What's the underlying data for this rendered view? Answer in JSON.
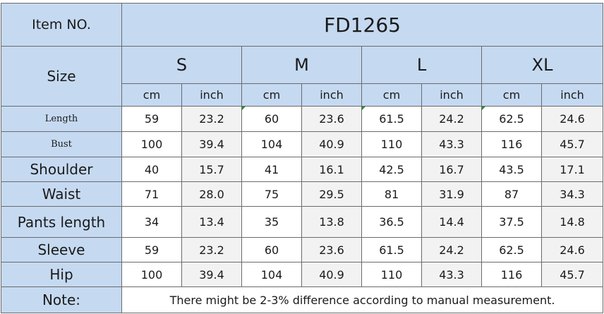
{
  "header": {
    "item_label": "Item NO.",
    "item_value": "FD1265",
    "size_label": "Size",
    "sizes": [
      "S",
      "M",
      "L",
      "XL"
    ],
    "units": [
      "cm",
      "inch",
      "cm",
      "inch",
      "cm",
      "inch",
      "cm",
      "inch"
    ]
  },
  "rows": [
    {
      "label": "Length",
      "values": [
        "59",
        "23.2",
        "60",
        "23.6",
        "61.5",
        "24.2",
        "62.5",
        "24.6"
      ]
    },
    {
      "label": "Bust",
      "values": [
        "100",
        "39.4",
        "104",
        "40.9",
        "110",
        "43.3",
        "116",
        "45.7"
      ]
    },
    {
      "label": "Shoulder",
      "values": [
        "40",
        "15.7",
        "41",
        "16.1",
        "42.5",
        "16.7",
        "43.5",
        "17.1"
      ]
    },
    {
      "label": "Waist",
      "values": [
        "71",
        "28.0",
        "75",
        "29.5",
        "81",
        "31.9",
        "87",
        "34.3"
      ]
    },
    {
      "label": "Pants length",
      "values": [
        "34",
        "13.4",
        "35",
        "13.8",
        "36.5",
        "14.4",
        "37.5",
        "14.8"
      ]
    },
    {
      "label": "Sleeve",
      "values": [
        "59",
        "23.2",
        "60",
        "23.6",
        "61.5",
        "24.2",
        "62.5",
        "24.6"
      ]
    },
    {
      "label": "Hip",
      "values": [
        "100",
        "39.4",
        "104",
        "40.9",
        "110",
        "43.3",
        "116",
        "45.7"
      ]
    }
  ],
  "note": {
    "label": "Note:",
    "text": "There might be 2-3% difference according to manual measurement."
  },
  "colors": {
    "header_fill": "#c5d9f1",
    "alt_fill": "#f2f2f2",
    "border": "#6b6b6b",
    "corner_marker": "#2e8b3a"
  }
}
